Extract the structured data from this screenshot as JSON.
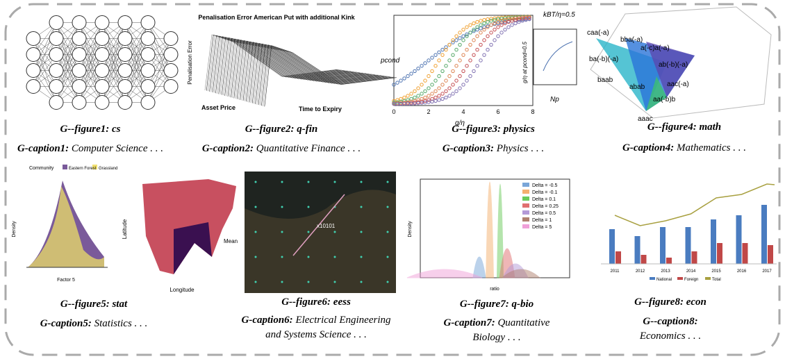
{
  "figures": [
    {
      "label": "G--figure1: cs",
      "caption_prefix": "G-caption1:",
      "caption_lines": [
        "Computer Science . . ."
      ],
      "thumb": {}
    },
    {
      "label": "G--figure2: q-fin",
      "caption_prefix": "G-caption2:",
      "caption_lines": [
        "Quantitative Finance . . ."
      ],
      "thumb": {
        "title": "Penalisation Error American Put with additional Kink",
        "zlabel": "Penalisation Error",
        "xlabel": "Asset Price",
        "ylabel": "Time to Expiry"
      }
    },
    {
      "label": "G--figure3: physics",
      "caption_prefix": "G-caption3:",
      "caption_lines": [
        "Physics . . ."
      ],
      "thumb": {
        "ylabel": "pcond",
        "xlabel": "g/η",
        "note": "kBT/η=0.5",
        "inset_xlabel": "Np",
        "inset_ylabel": "g/η at pcond=0.5",
        "xticks": [
          "0",
          "2",
          "4",
          "6",
          "8"
        ]
      }
    },
    {
      "label": "G--figure4: math",
      "caption_prefix": "G-caption4:",
      "caption_lines": [
        "Mathematics . . ."
      ],
      "thumb": {
        "nodes": [
          "caa(-a)",
          "bba(-a)",
          "a(-c)a(-a)",
          "ba(-b)(-a)",
          "ab(-b)(-a)",
          "baab",
          "abab",
          "aac(-a)",
          "aa(-b)b",
          "aaac"
        ]
      }
    },
    {
      "label": "G--figure5: stat",
      "caption_prefix": "G-caption5:",
      "caption_lines": [
        "Statistics . . ."
      ],
      "thumb": {
        "legend_title": "Community",
        "legend": [
          "Eastern Forest",
          "Grassland"
        ],
        "ylabel": "Density",
        "xlabel": "Factor 5",
        "map_ylabel": "Latitude",
        "map_xlabel": "Longitude",
        "map_legend": "Mean"
      }
    },
    {
      "label": "G--figure6: eess",
      "caption_prefix": "G-caption6:",
      "caption_lines": [
        "Electrical Engineering",
        "and Systems Science . . ."
      ],
      "thumb": {
        "tag": "x10101"
      }
    },
    {
      "label": "G--figure7: q-bio",
      "caption_prefix": "G-caption7:",
      "caption_lines": [
        "Quantitative",
        "Biology . . ."
      ],
      "thumb": {
        "legend": [
          "Delta = -0.5",
          "Delta = -0.1",
          "Delta = 0.1",
          "Delta = 0.25",
          "Delta = 0.5",
          "Delta = 1",
          "Delta = 5"
        ],
        "ylabel": "Density",
        "xlabel": "ratio"
      }
    },
    {
      "label": "G--figure8: econ",
      "caption_prefix": "G--caption8:",
      "caption_lines": [
        "Economics . . ."
      ],
      "thumb": {
        "categories": [
          "2011",
          "2012",
          "2013",
          "2014",
          "2015",
          "2016",
          "2017"
        ],
        "legend": [
          "National",
          "Foreign",
          "Total"
        ]
      }
    }
  ]
}
